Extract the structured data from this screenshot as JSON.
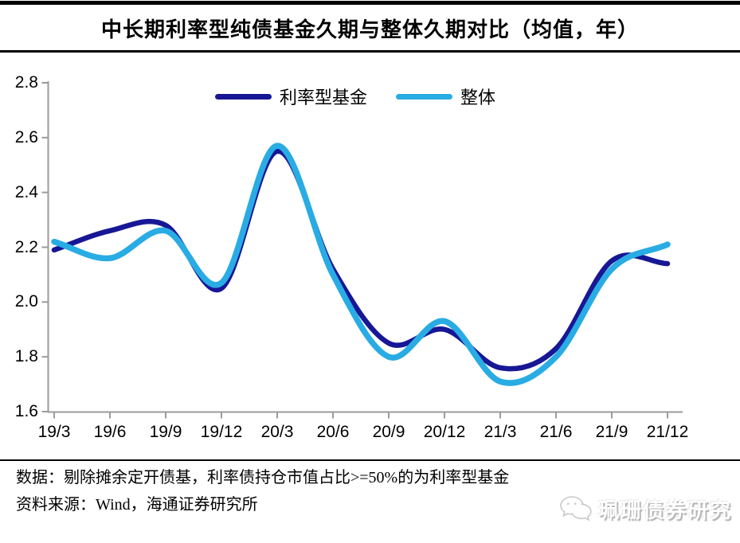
{
  "title": "中长期利率型纯债基金久期与整体久期对比（均值，年）",
  "chart_data": {
    "type": "line",
    "title": "中长期利率型纯债基金久期与整体久期对比（均值，年）",
    "categories": [
      "19/3",
      "19/6",
      "19/9",
      "19/12",
      "20/3",
      "20/6",
      "20/9",
      "20/12",
      "21/3",
      "21/6",
      "21/9",
      "21/12"
    ],
    "series": [
      {
        "name": "利率型基金",
        "color": "#171796",
        "values": [
          2.19,
          2.26,
          2.28,
          2.05,
          2.55,
          2.12,
          1.85,
          1.9,
          1.76,
          1.83,
          2.15,
          2.14
        ]
      },
      {
        "name": "整体",
        "color": "#29ACE3",
        "values": [
          2.22,
          2.16,
          2.26,
          2.07,
          2.57,
          2.1,
          1.8,
          1.93,
          1.71,
          1.8,
          2.12,
          2.21
        ]
      }
    ],
    "ylim": [
      1.6,
      2.8
    ],
    "ytick_labels": [
      "1.6",
      "1.8",
      "2.0",
      "2.2",
      "2.4",
      "2.6",
      "2.8"
    ],
    "smoothing": "spline",
    "grid": false,
    "legend_position": "top-center",
    "axis_color": "#9b9b9b"
  },
  "footer": {
    "line1": "数据：剔除摊余定开债基，利率债持仓市值占比>=50%的为利率型基金",
    "line2": "资料来源：Wind，海通证券研究所"
  },
  "watermark": {
    "text": "珮珊债券研究",
    "icon": "wechat-chat-bubbles-icon"
  }
}
